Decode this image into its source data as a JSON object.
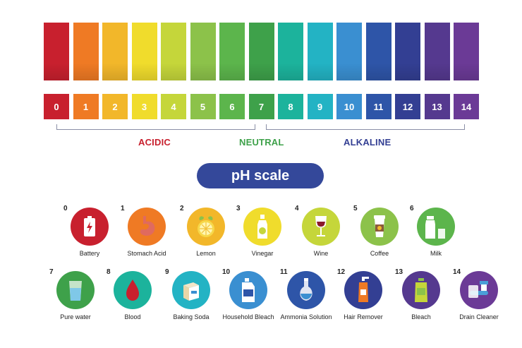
{
  "scale": {
    "numbers": [
      "0",
      "1",
      "2",
      "3",
      "4",
      "5",
      "6",
      "7",
      "8",
      "9",
      "10",
      "11",
      "12",
      "13",
      "14"
    ],
    "colors": [
      "#c8202e",
      "#ef7a24",
      "#f2b72a",
      "#f0dc2c",
      "#c5d63a",
      "#8cc24a",
      "#5cb54c",
      "#3ea14a",
      "#1cb39c",
      "#23b3c4",
      "#3a8fd1",
      "#2e55a8",
      "#333f93",
      "#55398f",
      "#6b3a96"
    ],
    "acidic_label": "ACIDIC",
    "neutral_label": "NEUTRAL",
    "alkaline_label": "ALKALINE",
    "acidic_color": "#c8202e",
    "neutral_color": "#3ea14a",
    "alkaline_color": "#333f93"
  },
  "title": "pH scale",
  "items": [
    {
      "ph": "0",
      "label": "Battery",
      "color": "#c8202e",
      "icon": "battery-icon"
    },
    {
      "ph": "1",
      "label": "Stomach Acid",
      "color": "#ef7a24",
      "icon": "stomach-icon"
    },
    {
      "ph": "2",
      "label": "Lemon",
      "color": "#f2b72a",
      "icon": "lemon-icon"
    },
    {
      "ph": "3",
      "label": "Vinegar",
      "color": "#f0dc2c",
      "icon": "vinegar-bottle-icon"
    },
    {
      "ph": "4",
      "label": "Wine",
      "color": "#c5d63a",
      "icon": "wine-glass-icon"
    },
    {
      "ph": "5",
      "label": "Coffee",
      "color": "#8cc24a",
      "icon": "coffee-cup-icon"
    },
    {
      "ph": "6",
      "label": "Milk",
      "color": "#5cb54c",
      "icon": "milk-bottle-icon"
    },
    {
      "ph": "7",
      "label": "Pure water",
      "color": "#3ea14a",
      "icon": "water-glass-icon"
    },
    {
      "ph": "8",
      "label": "Blood",
      "color": "#1cb39c",
      "icon": "blood-drop-icon"
    },
    {
      "ph": "9",
      "label": "Baking Soda",
      "color": "#23b3c4",
      "icon": "baking-soda-box-icon"
    },
    {
      "ph": "10",
      "label": "Household Bleach",
      "color": "#3a8fd1",
      "icon": "bleach-bottle-icon"
    },
    {
      "ph": "11",
      "label": "Ammonia Solution",
      "color": "#2e55a8",
      "icon": "flask-icon"
    },
    {
      "ph": "12",
      "label": "Hair Remover",
      "color": "#333f93",
      "icon": "pump-bottle-icon"
    },
    {
      "ph": "13",
      "label": "Bleach",
      "color": "#55398f",
      "icon": "jug-icon"
    },
    {
      "ph": "14",
      "label": "Drain Cleaner",
      "color": "#6b3a96",
      "icon": "drain-cleaner-icon"
    }
  ]
}
